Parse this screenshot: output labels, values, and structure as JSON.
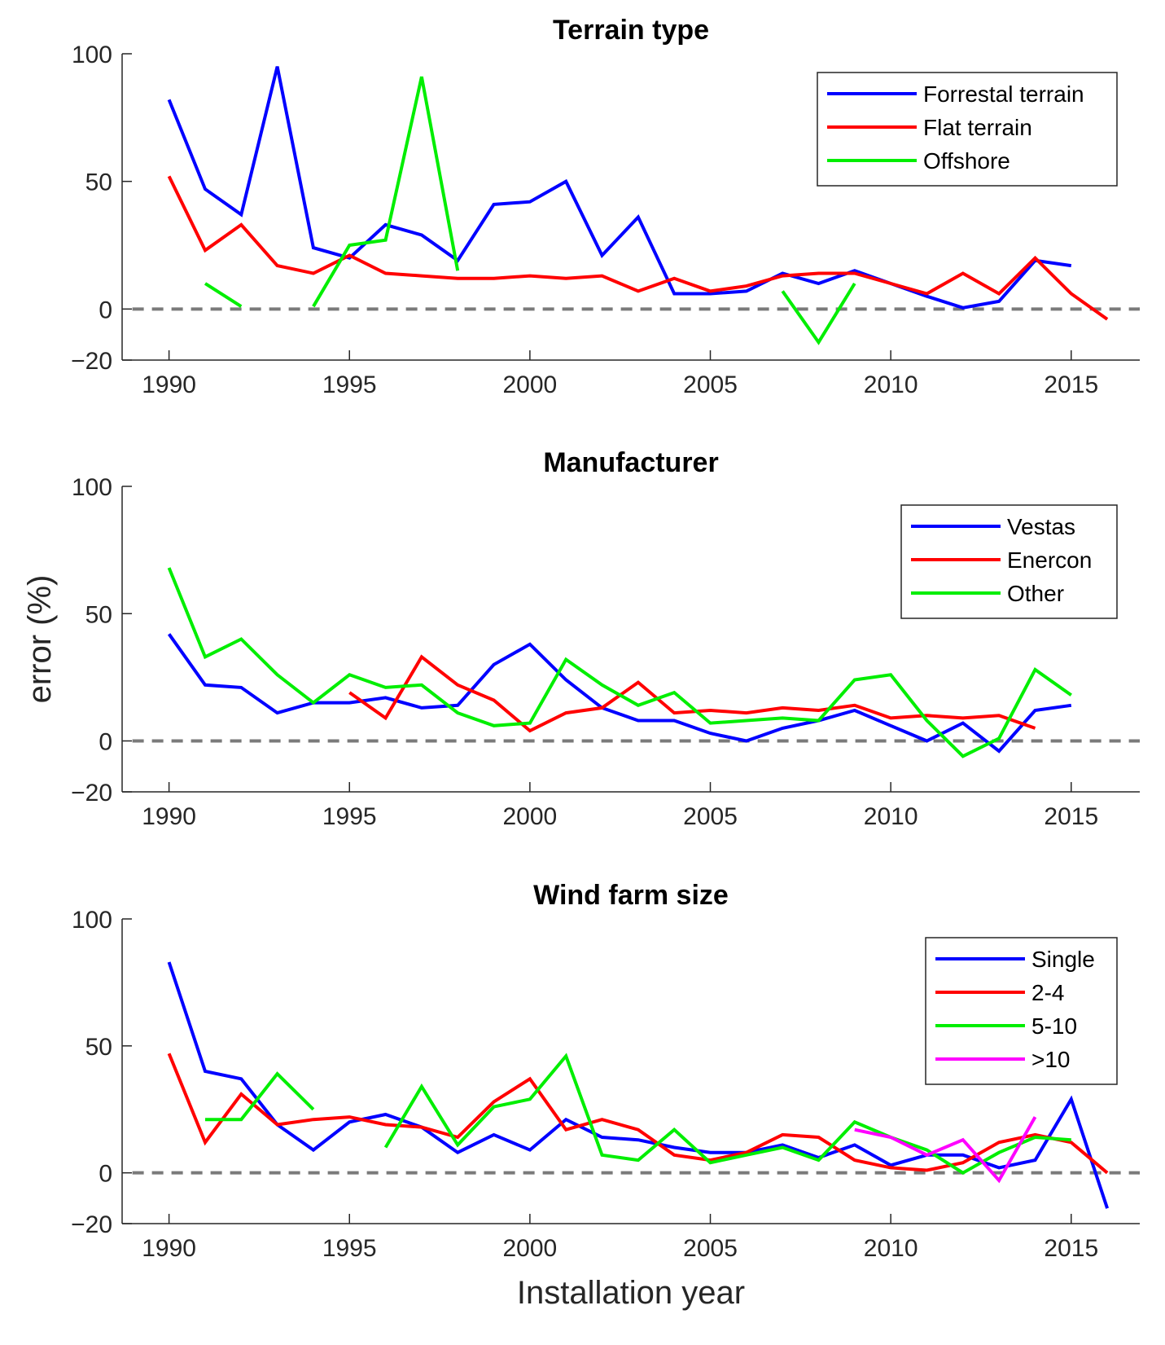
{
  "chart_data": [
    {
      "type": "line",
      "title": "Terrain type",
      "xlim": [
        1988.7,
        2016.9
      ],
      "ylim": [
        -20,
        100
      ],
      "xticks": [
        1990,
        1995,
        2000,
        2005,
        2010,
        2015
      ],
      "yticks": [
        -20,
        0,
        50,
        100
      ],
      "xlabel": "",
      "ylabel": "",
      "zero_line": true,
      "legend_position": "top-right",
      "series": [
        {
          "name": "Forrestal terrain",
          "color": "#0000ff",
          "x": [
            1990,
            1991,
            1992,
            1993,
            1994,
            1995,
            1996,
            1997,
            1998,
            1999,
            2000,
            2001,
            2002,
            2003,
            2004,
            2005,
            2006,
            2007,
            2008,
            2009,
            2010,
            2011,
            2012,
            2013,
            2014,
            2015
          ],
          "y": [
            82,
            47,
            37,
            95,
            24,
            20,
            33,
            29,
            19,
            41,
            42,
            50,
            21,
            36,
            6,
            6,
            7,
            14,
            10,
            15,
            10,
            5,
            0.5,
            3,
            19,
            17
          ]
        },
        {
          "name": "Flat terrain",
          "color": "#ff0000",
          "x": [
            1990,
            1991,
            1992,
            1993,
            1994,
            1995,
            1996,
            1997,
            1998,
            1999,
            2000,
            2001,
            2002,
            2003,
            2004,
            2005,
            2006,
            2007,
            2008,
            2009,
            2010,
            2011,
            2012,
            2013,
            2014,
            2015,
            2016
          ],
          "y": [
            52,
            23,
            33,
            17,
            14,
            21,
            14,
            13,
            12,
            12,
            13,
            12,
            13,
            7,
            12,
            7,
            9,
            13,
            14,
            14,
            10,
            6,
            14,
            6,
            20,
            6,
            -4
          ]
        },
        {
          "name": "Offshore",
          "color": "#00ee00",
          "x": [
            1991,
            1992,
            null,
            1994,
            1995,
            1996,
            1997,
            1998,
            null,
            2007,
            2008,
            2009
          ],
          "y": [
            10,
            1,
            null,
            1,
            25,
            27,
            91,
            15,
            null,
            7,
            -13,
            10
          ]
        }
      ]
    },
    {
      "type": "line",
      "title": "Manufacturer",
      "xlim": [
        1988.7,
        2016.9
      ],
      "ylim": [
        -20,
        100
      ],
      "xticks": [
        1990,
        1995,
        2000,
        2005,
        2010,
        2015
      ],
      "yticks": [
        -20,
        0,
        50,
        100
      ],
      "xlabel": "",
      "ylabel": "error (%)",
      "zero_line": true,
      "legend_position": "top-right",
      "series": [
        {
          "name": "Vestas",
          "color": "#0000ff",
          "x": [
            1990,
            1991,
            1992,
            1993,
            1994,
            1995,
            1996,
            1997,
            1998,
            1999,
            2000,
            2001,
            2002,
            2003,
            2004,
            2005,
            2006,
            2007,
            2008,
            2009,
            2010,
            2011,
            2012,
            2013,
            2014,
            2015
          ],
          "y": [
            42,
            22,
            21,
            11,
            15,
            15,
            17,
            13,
            14,
            30,
            38,
            24,
            13,
            8,
            8,
            3,
            0,
            5,
            8,
            12,
            6,
            0,
            7,
            -4,
            12,
            14
          ]
        },
        {
          "name": "Enercon",
          "color": "#ff0000",
          "x": [
            1995,
            1996,
            1997,
            1998,
            1999,
            2000,
            2001,
            2002,
            2003,
            2004,
            2005,
            2006,
            2007,
            2008,
            2009,
            2010,
            2011,
            2012,
            2013,
            2014
          ],
          "y": [
            19,
            9,
            33,
            22,
            16,
            4,
            11,
            13,
            23,
            11,
            12,
            11,
            13,
            12,
            14,
            9,
            10,
            9,
            10,
            5
          ]
        },
        {
          "name": "Other",
          "color": "#00ee00",
          "x": [
            1990,
            1991,
            1992,
            1993,
            1994,
            1995,
            1996,
            1997,
            1998,
            1999,
            2000,
            2001,
            2002,
            2003,
            2004,
            2005,
            2006,
            2007,
            2008,
            2009,
            2010,
            2011,
            2012,
            2013,
            2014,
            2015
          ],
          "y": [
            68,
            33,
            40,
            26,
            15,
            26,
            21,
            22,
            11,
            6,
            7,
            32,
            22,
            14,
            19,
            7,
            8,
            9,
            8,
            24,
            26,
            8,
            -6,
            1,
            28,
            18
          ]
        }
      ]
    },
    {
      "type": "line",
      "title": "Wind farm size",
      "xlim": [
        1988.7,
        2016.9
      ],
      "ylim": [
        -20,
        100
      ],
      "xticks": [
        1990,
        1995,
        2000,
        2005,
        2010,
        2015
      ],
      "yticks": [
        -20,
        0,
        50,
        100
      ],
      "xlabel": "Installation year",
      "ylabel": "",
      "zero_line": true,
      "legend_position": "top-right",
      "series": [
        {
          "name": "Single",
          "color": "#0000ff",
          "x": [
            1990,
            1991,
            1992,
            1993,
            1994,
            1995,
            1996,
            1997,
            1998,
            1999,
            2000,
            2001,
            2002,
            2003,
            2004,
            2005,
            2006,
            2007,
            2008,
            2009,
            2010,
            2011,
            2012,
            2013,
            2014,
            2015,
            2016
          ],
          "y": [
            83,
            40,
            37,
            19,
            9,
            20,
            23,
            18,
            8,
            15,
            9,
            21,
            14,
            13,
            10,
            8,
            8,
            11,
            6,
            11,
            3,
            7,
            7,
            2,
            5,
            29,
            -14
          ]
        },
        {
          "name": "2-4",
          "color": "#ff0000",
          "x": [
            1990,
            1991,
            1992,
            1993,
            1994,
            1995,
            1996,
            1997,
            1998,
            1999,
            2000,
            2001,
            2002,
            2003,
            2004,
            2005,
            2006,
            2007,
            2008,
            2009,
            2010,
            2011,
            2012,
            2013,
            2014,
            2015,
            2016
          ],
          "y": [
            47,
            12,
            31,
            19,
            21,
            22,
            19,
            18,
            14,
            28,
            37,
            17,
            21,
            17,
            7,
            5,
            8,
            15,
            14,
            5,
            2,
            1,
            4,
            12,
            15,
            12,
            0
          ]
        },
        {
          "name": "5-10",
          "color": "#00ee00",
          "x": [
            1991,
            1992,
            1993,
            1994,
            null,
            1996,
            1997,
            1998,
            1999,
            2000,
            2001,
            2002,
            2003,
            2004,
            2005,
            2006,
            2007,
            2008,
            2009,
            2010,
            2011,
            2012,
            2013,
            2014,
            2015
          ],
          "y": [
            21,
            21,
            39,
            25,
            null,
            10,
            34,
            11,
            26,
            29,
            46,
            7,
            5,
            17,
            4,
            7,
            10,
            5,
            20,
            14,
            9,
            0,
            8,
            14,
            13
          ]
        },
        {
          "name": ">10",
          "color": "#ff00ff",
          "x": [
            2009,
            2010,
            2011,
            2012,
            2013,
            2014
          ],
          "y": [
            17,
            14,
            7,
            13,
            -3,
            22
          ]
        }
      ]
    }
  ]
}
